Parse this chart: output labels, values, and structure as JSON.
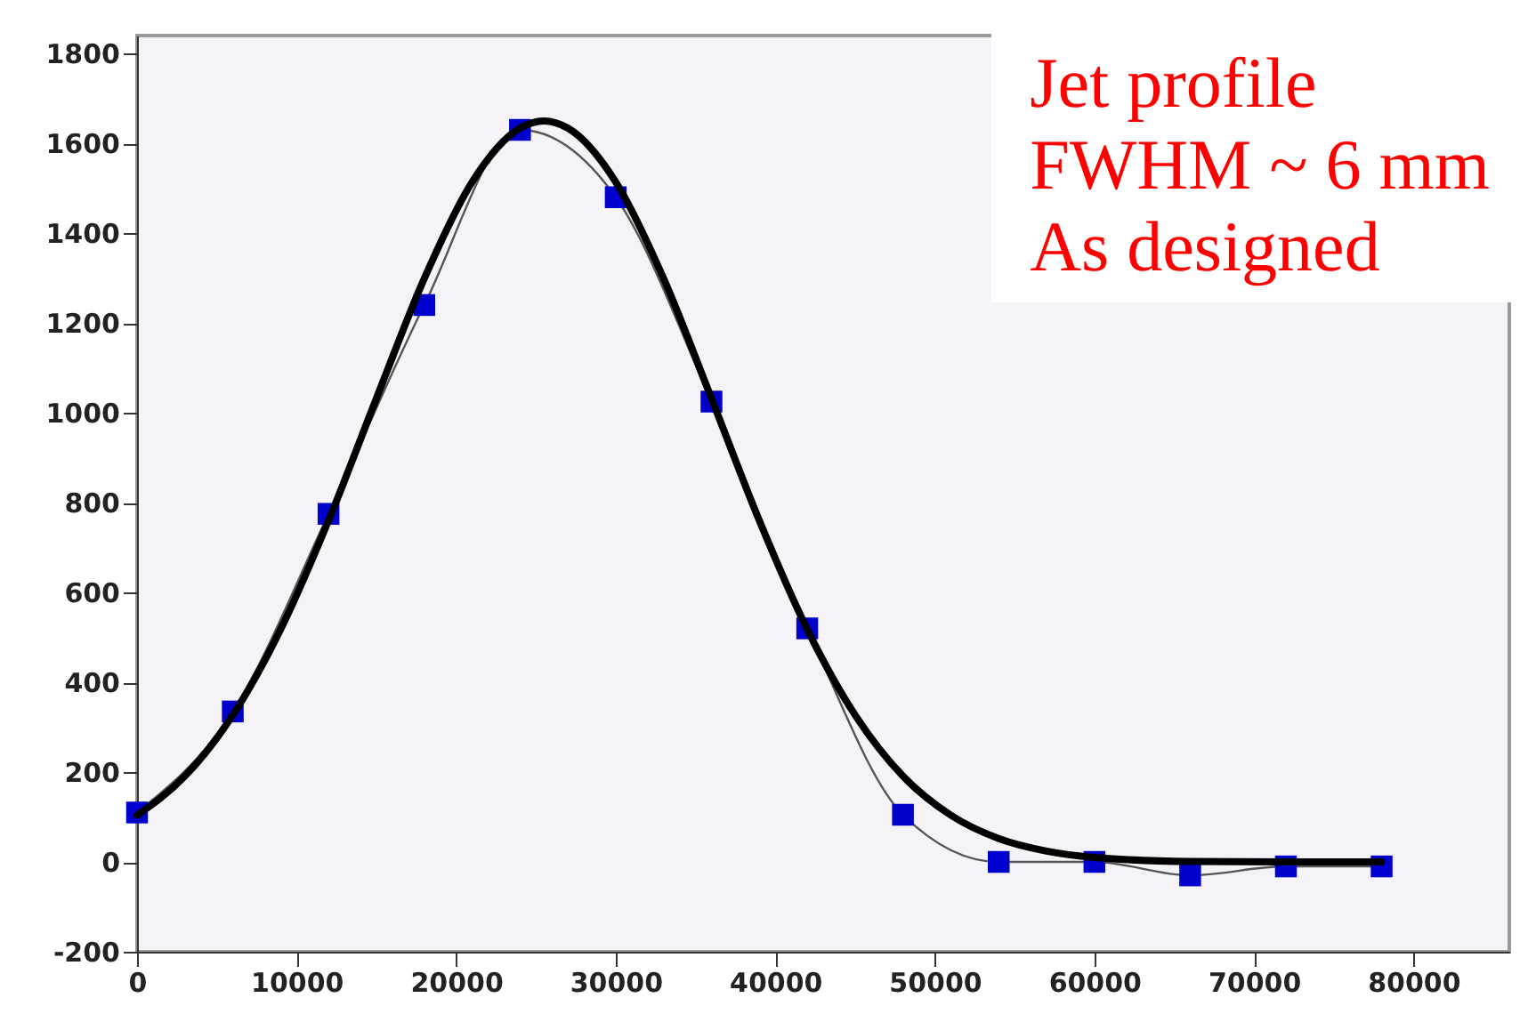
{
  "chart_data": {
    "type": "line",
    "x": [
      0,
      6000,
      12000,
      18000,
      24000,
      30000,
      36000,
      42000,
      48000,
      54000,
      60000,
      66000,
      72000,
      78000
    ],
    "series": [
      {
        "color": "#0000cc",
        "marker": "square",
        "values": [
          110,
          335,
          775,
          1240,
          1630,
          1480,
          1025,
          520,
          105,
          0,
          0,
          -30,
          -10,
          -10
        ]
      },
      {
        "type": "line",
        "color": "#000000",
        "marker": "none",
        "x": [
          0,
          3000,
          6000,
          9000,
          12000,
          15000,
          18000,
          21000,
          24000,
          25500,
          27000,
          30000,
          33000,
          36000,
          39000,
          42000,
          45000,
          48000,
          51000,
          54000,
          57000,
          60000,
          66000,
          72000,
          78000
        ],
        "values": [
          104,
          191,
          327,
          518,
          760,
          1032,
          1299,
          1514,
          1634,
          1650,
          1634,
          1514,
          1299,
          1032,
          760,
          518,
          327,
          191,
          104,
          52,
          24,
          10,
          1,
          0,
          0
        ]
      }
    ],
    "xlim": [
      0,
      86000
    ],
    "xticks": [
      0,
      10000,
      20000,
      30000,
      40000,
      50000,
      60000,
      70000,
      80000
    ],
    "ylim": [
      -200,
      1840
    ],
    "yticks": [
      -200,
      0,
      200,
      400,
      600,
      800,
      1000,
      1200,
      1400,
      1600,
      1800
    ],
    "grid": false,
    "annotations": [
      "Jet profile",
      "FWHM ~ 6 mm",
      "As designed"
    ]
  }
}
